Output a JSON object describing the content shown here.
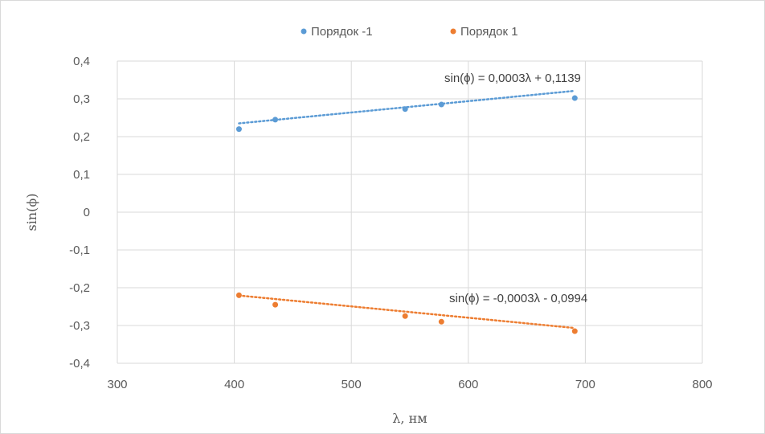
{
  "chart_data": {
    "type": "scatter",
    "title": "",
    "xlabel": "λ, нм",
    "ylabel": "sin(ϕ)",
    "xlim": [
      300,
      800
    ],
    "ylim": [
      -0.4,
      0.4
    ],
    "x_ticks": [
      300,
      400,
      500,
      600,
      700,
      800
    ],
    "x_tick_labels": [
      "300",
      "400",
      "500",
      "600",
      "700",
      "800"
    ],
    "y_ticks": [
      0.4,
      0.3,
      0.2,
      0.1,
      0,
      -0.1,
      -0.2,
      -0.3,
      -0.4
    ],
    "y_tick_labels": [
      "0,4",
      "0,3",
      "0,2",
      "0,1",
      "0",
      "-0,1",
      "-0,2",
      "-0,3",
      "-0,4"
    ],
    "grid": true,
    "legend": {
      "position": "top",
      "entries": [
        "Порядок -1",
        "Порядок 1"
      ]
    },
    "series": [
      {
        "name": "Порядок -1",
        "color": "#5b9bd5",
        "x": [
          404,
          435,
          546,
          577,
          691
        ],
        "y": [
          0.22,
          0.245,
          0.273,
          0.285,
          0.302
        ],
        "trendline": {
          "type": "linear",
          "slope": 0.0003,
          "intercept": 0.1139,
          "label": "sin(ϕ) = 0,0003λ + 0,1139"
        }
      },
      {
        "name": "Порядок 1",
        "color": "#ed7d31",
        "x": [
          404,
          435,
          546,
          577,
          691
        ],
        "y": [
          -0.22,
          -0.245,
          -0.275,
          -0.29,
          -0.315
        ],
        "trendline": {
          "type": "linear",
          "slope": -0.0003,
          "intercept": -0.0994,
          "label": "sin(ϕ) = -0,0003λ - 0,0994"
        }
      }
    ]
  }
}
